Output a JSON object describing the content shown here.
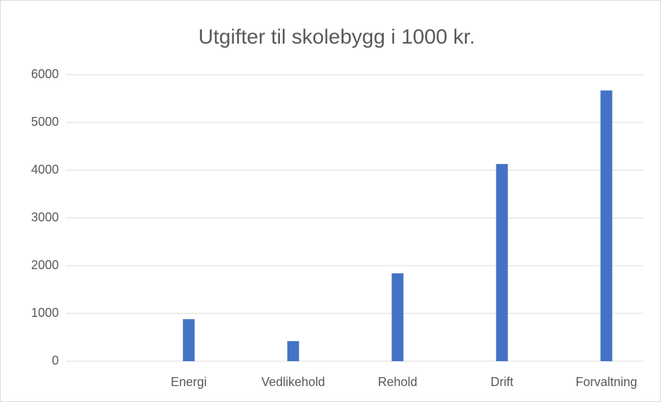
{
  "chart_data": {
    "type": "bar",
    "title": "Utgifter til skolebygg i 1000 kr.",
    "categories": [
      null,
      "Energi",
      "Vedlikehold",
      "Rehold",
      "Drift",
      "Forvaltning"
    ],
    "values": [
      null,
      880,
      420,
      1840,
      4130,
      5670
    ],
    "color": "#4472c4",
    "ylim": [
      0,
      6000
    ],
    "yticks": [
      0,
      1000,
      2000,
      3000,
      4000,
      5000,
      6000
    ],
    "grid": true
  }
}
